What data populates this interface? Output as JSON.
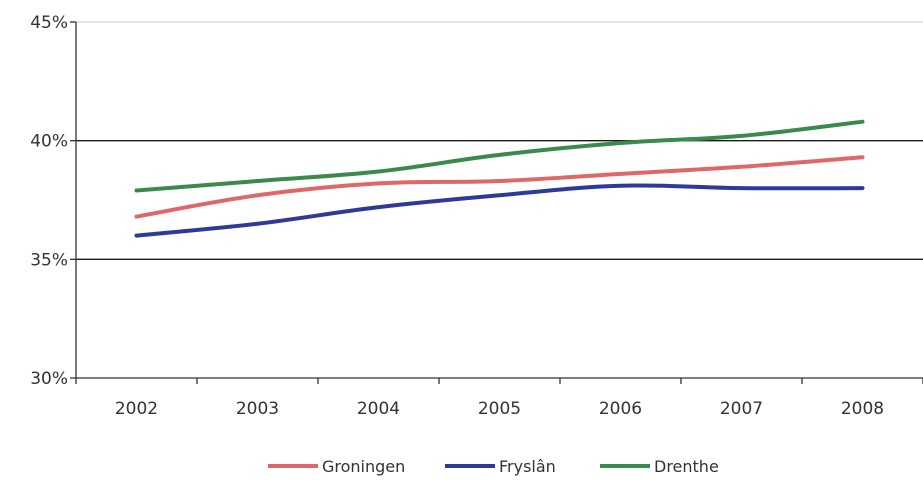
{
  "chart_data": {
    "type": "line",
    "categories": [
      "2002",
      "2003",
      "2004",
      "2005",
      "2006",
      "2007",
      "2008"
    ],
    "ylim": [
      30,
      45
    ],
    "yticks": [
      30,
      35,
      40,
      45
    ],
    "ytick_labels": [
      "30%",
      "35%",
      "40%",
      "45%"
    ],
    "gridlines": [
      35,
      40
    ],
    "legend_position": "bottom",
    "series": [
      {
        "name": "Groningen",
        "color": "#e06767",
        "values": [
          36.8,
          37.7,
          38.2,
          38.3,
          38.6,
          38.9,
          39.3
        ]
      },
      {
        "name": "Fryslân",
        "color": "#2e3a9a",
        "values": [
          36.0,
          36.5,
          37.2,
          37.7,
          38.1,
          38.0,
          38.0
        ]
      },
      {
        "name": "Drenthe",
        "color": "#3a8a4e",
        "values": [
          37.9,
          38.3,
          38.7,
          39.4,
          39.9,
          40.2,
          40.8
        ]
      }
    ]
  }
}
